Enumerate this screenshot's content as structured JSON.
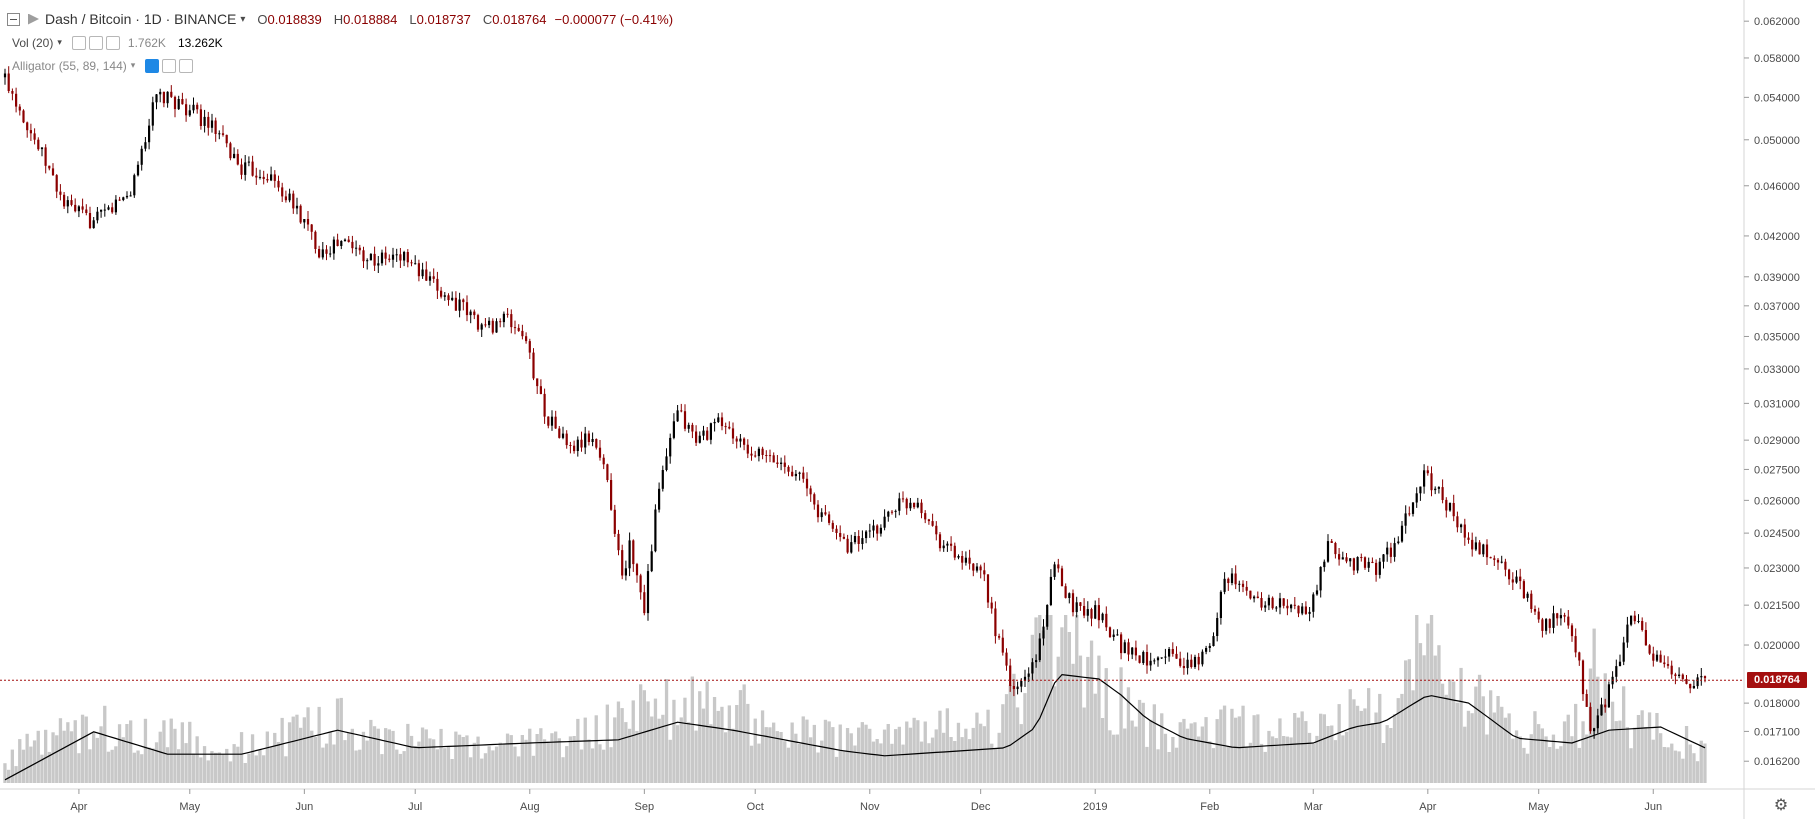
{
  "header": {
    "collapse_icon": "minus-box-icon",
    "symbol_icon": "dash-logo-icon",
    "symbol_title": "Dash / Bitcoin · 1D · BINANCE",
    "dropdown_icon": "chevron-down-icon",
    "ohlc": {
      "o_label": "O",
      "o_value": "0.018839",
      "h_label": "H",
      "h_value": "0.018884",
      "l_label": "L",
      "l_value": "0.018737",
      "c_label": "C",
      "c_value": "0.018764",
      "change": "−0.000077 (−0.41%)"
    }
  },
  "indicators": [
    {
      "name": "Vol (20)",
      "value1": "1.762K",
      "value2": "13.262K"
    },
    {
      "name": "Alligator (55, 89, 144)"
    }
  ],
  "last_price": "0.018764",
  "colors": {
    "up": "#000000",
    "down": "#8b0000",
    "volume": "#c8c8c8",
    "ma_line": "#000000",
    "last_price": "#a40f0f"
  },
  "chart_data": {
    "type": "candlestick",
    "title": "Dash / Bitcoin · 1D · BINANCE",
    "y_scale": "log",
    "ylim": [
      0.0158,
      0.0635
    ],
    "price_ticks": [
      "0.062000",
      "0.058000",
      "0.054000",
      "0.050000",
      "0.046000",
      "0.042000",
      "0.039000",
      "0.037000",
      "0.035000",
      "0.033000",
      "0.031000",
      "0.029000",
      "0.027500",
      "0.026000",
      "0.024500",
      "0.023000",
      "0.021500",
      "0.020000",
      "0.018000",
      "0.017100",
      "0.016200"
    ],
    "time_ticks": [
      "Apr",
      "May",
      "Jun",
      "Jul",
      "Aug",
      "Sep",
      "Oct",
      "Nov",
      "Dec",
      "2019",
      "Feb",
      "Mar",
      "Apr",
      "May",
      "Jun"
    ],
    "price_path": [
      [
        "2018-03-12",
        0.056
      ],
      [
        "2018-03-20",
        0.05
      ],
      [
        "2018-03-28",
        0.0445
      ],
      [
        "2018-04-05",
        0.043
      ],
      [
        "2018-04-15",
        0.0455
      ],
      [
        "2018-04-22",
        0.054
      ],
      [
        "2018-04-28",
        0.0535
      ],
      [
        "2018-05-06",
        0.0515
      ],
      [
        "2018-05-15",
        0.0475
      ],
      [
        "2018-05-22",
        0.047
      ],
      [
        "2018-05-30",
        0.044
      ],
      [
        "2018-06-05",
        0.041
      ],
      [
        "2018-06-12",
        0.0415
      ],
      [
        "2018-06-20",
        0.0402
      ],
      [
        "2018-06-28",
        0.0405
      ],
      [
        "2018-07-05",
        0.0385
      ],
      [
        "2018-07-12",
        0.0372
      ],
      [
        "2018-07-20",
        0.0355
      ],
      [
        "2018-07-25",
        0.0362
      ],
      [
        "2018-07-30",
        0.0352
      ],
      [
        "2018-08-05",
        0.0305
      ],
      [
        "2018-08-12",
        0.0285
      ],
      [
        "2018-08-18",
        0.0292
      ],
      [
        "2018-08-22",
        0.027
      ],
      [
        "2018-08-26",
        0.0225
      ],
      [
        "2018-08-28",
        0.024
      ],
      [
        "2018-09-01",
        0.0215
      ],
      [
        "2018-09-05",
        0.0265
      ],
      [
        "2018-09-10",
        0.0305
      ],
      [
        "2018-09-15",
        0.029
      ],
      [
        "2018-09-22",
        0.03
      ],
      [
        "2018-09-28",
        0.0285
      ],
      [
        "2018-10-05",
        0.028
      ],
      [
        "2018-10-12",
        0.0275
      ],
      [
        "2018-10-18",
        0.0255
      ],
      [
        "2018-10-26",
        0.024
      ],
      [
        "2018-11-02",
        0.0245
      ],
      [
        "2018-11-08",
        0.0258
      ],
      [
        "2018-11-14",
        0.026
      ],
      [
        "2018-11-20",
        0.0242
      ],
      [
        "2018-11-28",
        0.023
      ],
      [
        "2018-12-02",
        0.0225
      ],
      [
        "2018-12-06",
        0.02
      ],
      [
        "2018-12-10",
        0.0183
      ],
      [
        "2018-12-16",
        0.0195
      ],
      [
        "2018-12-21",
        0.023
      ],
      [
        "2018-12-26",
        0.0215
      ],
      [
        "2019-01-02",
        0.0212
      ],
      [
        "2019-01-08",
        0.02
      ],
      [
        "2019-01-14",
        0.0195
      ],
      [
        "2019-01-20",
        0.0198
      ],
      [
        "2019-01-26",
        0.0192
      ],
      [
        "2019-02-01",
        0.0198
      ],
      [
        "2019-02-05",
        0.0228
      ],
      [
        "2019-02-12",
        0.0218
      ],
      [
        "2019-02-20",
        0.0215
      ],
      [
        "2019-02-28",
        0.0212
      ],
      [
        "2019-03-05",
        0.0238
      ],
      [
        "2019-03-12",
        0.0232
      ],
      [
        "2019-03-18",
        0.023
      ],
      [
        "2019-03-24",
        0.0242
      ],
      [
        "2019-03-31",
        0.0272
      ],
      [
        "2019-04-05",
        0.0262
      ],
      [
        "2019-04-12",
        0.024
      ],
      [
        "2019-04-18",
        0.0235
      ],
      [
        "2019-04-25",
        0.0225
      ],
      [
        "2019-05-02",
        0.0208
      ],
      [
        "2019-05-08",
        0.021
      ],
      [
        "2019-05-12",
        0.0192
      ],
      [
        "2019-05-15",
        0.017
      ],
      [
        "2019-05-18",
        0.0178
      ],
      [
        "2019-05-22",
        0.019
      ],
      [
        "2019-05-26",
        0.0212
      ],
      [
        "2019-06-01",
        0.0195
      ],
      [
        "2019-06-06",
        0.019
      ],
      [
        "2019-06-12",
        0.0187
      ],
      [
        "2019-06-15",
        0.018764
      ]
    ],
    "volume_path": [
      [
        "2018-03-12",
        0.12
      ],
      [
        "2018-03-22",
        0.3
      ],
      [
        "2018-04-05",
        0.35
      ],
      [
        "2018-04-25",
        0.3
      ],
      [
        "2018-05-15",
        0.22
      ],
      [
        "2018-06-10",
        0.38
      ],
      [
        "2018-07-01",
        0.25
      ],
      [
        "2018-07-25",
        0.22
      ],
      [
        "2018-08-15",
        0.28
      ],
      [
        "2018-08-30",
        0.45
      ],
      [
        "2018-09-10",
        0.5
      ],
      [
        "2018-09-25",
        0.45
      ],
      [
        "2018-10-15",
        0.3
      ],
      [
        "2018-11-05",
        0.25
      ],
      [
        "2018-11-18",
        0.35
      ],
      [
        "2018-12-05",
        0.35
      ],
      [
        "2018-12-12",
        0.55
      ],
      [
        "2018-12-20",
        1.0
      ],
      [
        "2018-12-28",
        0.7
      ],
      [
        "2019-01-08",
        0.5
      ],
      [
        "2019-01-20",
        0.3
      ],
      [
        "2019-02-05",
        0.35
      ],
      [
        "2019-02-25",
        0.3
      ],
      [
        "2019-03-12",
        0.45
      ],
      [
        "2019-03-20",
        0.4
      ],
      [
        "2019-03-31",
        0.85
      ],
      [
        "2019-04-10",
        0.55
      ],
      [
        "2019-04-25",
        0.3
      ],
      [
        "2019-05-12",
        0.35
      ],
      [
        "2019-05-16",
        0.7
      ],
      [
        "2019-05-25",
        0.4
      ],
      [
        "2019-06-15",
        0.22
      ]
    ],
    "volume_ma_path": [
      [
        "2018-03-12",
        0.02
      ],
      [
        "2018-04-05",
        0.32
      ],
      [
        "2018-04-25",
        0.18
      ],
      [
        "2018-05-15",
        0.18
      ],
      [
        "2018-06-10",
        0.33
      ],
      [
        "2018-07-01",
        0.22
      ],
      [
        "2018-08-01",
        0.25
      ],
      [
        "2018-08-25",
        0.27
      ],
      [
        "2018-09-10",
        0.38
      ],
      [
        "2018-09-25",
        0.33
      ],
      [
        "2018-10-25",
        0.2
      ],
      [
        "2018-11-05",
        0.17
      ],
      [
        "2018-11-25",
        0.2
      ],
      [
        "2018-12-08",
        0.22
      ],
      [
        "2018-12-16",
        0.35
      ],
      [
        "2018-12-22",
        0.68
      ],
      [
        "2019-01-02",
        0.65
      ],
      [
        "2019-01-08",
        0.55
      ],
      [
        "2019-01-15",
        0.4
      ],
      [
        "2019-01-25",
        0.28
      ],
      [
        "2019-02-08",
        0.22
      ],
      [
        "2019-03-01",
        0.25
      ],
      [
        "2019-03-12",
        0.35
      ],
      [
        "2019-03-20",
        0.38
      ],
      [
        "2019-04-01",
        0.55
      ],
      [
        "2019-04-12",
        0.5
      ],
      [
        "2019-04-25",
        0.28
      ],
      [
        "2019-05-10",
        0.25
      ],
      [
        "2019-05-20",
        0.33
      ],
      [
        "2019-06-03",
        0.35
      ],
      [
        "2019-06-15",
        0.22
      ]
    ]
  }
}
